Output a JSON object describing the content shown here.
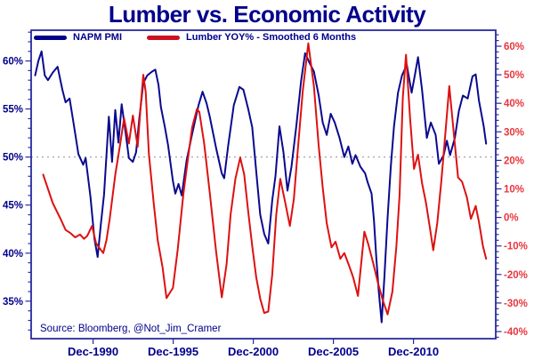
{
  "title": "Lumber vs. Economic Activity",
  "source_note": "Source: Bloomberg, @Not_Jim_Cramer",
  "legend": [
    {
      "label": "NAPM PMI",
      "color": "#00008b"
    },
    {
      "label": "Lumber YOY% - Smoothed 6 Months",
      "color": "#cc1122"
    }
  ],
  "colors": {
    "navy_text": "#00008b",
    "red_label": "#e8353c",
    "frame": "#2a2aa0",
    "reference_line": "#9a9a9a",
    "background": "#ffffff"
  },
  "chart_data": {
    "type": "line",
    "title": "Lumber vs. Economic Activity",
    "grid": "off",
    "legend_position": "top-left-inside",
    "x_axis": {
      "tick_labels": [
        "Dec-1990",
        "Dec-1995",
        "Dec-2000",
        "Dec-2005",
        "Dec-2010"
      ],
      "tick_positions": [
        1990.9167,
        1995.9167,
        2000.9167,
        2005.9167,
        2010.9167
      ],
      "range": [
        1987.05,
        2016.05
      ]
    },
    "left_axis": {
      "series": "NAPM PMI",
      "tick_labels": [
        "35%",
        "40%",
        "45%",
        "50%",
        "55%",
        "60%"
      ],
      "tick_values": [
        35,
        40,
        45,
        50,
        55,
        60
      ],
      "minor_step": 1,
      "range": [
        31.1,
        63.2
      ],
      "color": "#00008b"
    },
    "right_axis": {
      "series": "Lumber YOY% - Smoothed 6 Months",
      "tick_labels": [
        "-40%",
        "-30%",
        "-20%",
        "-10%",
        "0%",
        "10%",
        "20%",
        "30%",
        "40%",
        "50%",
        "60%"
      ],
      "tick_values": [
        -40,
        -30,
        -20,
        -10,
        0,
        10,
        20,
        30,
        40,
        50,
        60
      ],
      "minor_step": 2,
      "range": [
        -42.5,
        65.6
      ],
      "color": "#e8353c"
    },
    "reference_line": {
      "axis": "left",
      "value": 50,
      "style": "dotted",
      "color": "#9a9a9a"
    },
    "series": [
      {
        "name": "NAPM PMI",
        "axis": "left",
        "color": "#0a0a8f",
        "points": [
          [
            1987.3,
            58.5
          ],
          [
            1987.5,
            60.0
          ],
          [
            1987.7,
            61.0
          ],
          [
            1987.9,
            58.5
          ],
          [
            1988.1,
            58.0
          ],
          [
            1988.4,
            58.8
          ],
          [
            1988.7,
            59.4
          ],
          [
            1989.0,
            57.0
          ],
          [
            1989.2,
            55.7
          ],
          [
            1989.45,
            56.1
          ],
          [
            1989.7,
            53.5
          ],
          [
            1990.0,
            50.3
          ],
          [
            1990.3,
            49.2
          ],
          [
            1990.45,
            49.9
          ],
          [
            1990.75,
            45.9
          ],
          [
            1991.0,
            41.5
          ],
          [
            1991.2,
            39.6
          ],
          [
            1991.4,
            43.0
          ],
          [
            1991.6,
            46.1
          ],
          [
            1991.9,
            54.2
          ],
          [
            1992.1,
            49.5
          ],
          [
            1992.3,
            54.9
          ],
          [
            1992.5,
            51.5
          ],
          [
            1992.7,
            55.5
          ],
          [
            1992.95,
            52.5
          ],
          [
            1993.15,
            49.9
          ],
          [
            1993.4,
            49.5
          ],
          [
            1993.6,
            50.5
          ],
          [
            1993.8,
            54.0
          ],
          [
            1994.05,
            57.7
          ],
          [
            1994.3,
            58.5
          ],
          [
            1994.6,
            58.9
          ],
          [
            1994.8,
            59.1
          ],
          [
            1995.0,
            57.5
          ],
          [
            1995.15,
            55.2
          ],
          [
            1995.4,
            53.1
          ],
          [
            1995.6,
            51.2
          ],
          [
            1995.9,
            47.5
          ],
          [
            1996.05,
            46.2
          ],
          [
            1996.25,
            47.2
          ],
          [
            1996.45,
            46.0
          ],
          [
            1996.75,
            49.6
          ],
          [
            1997.1,
            52.4
          ],
          [
            1997.5,
            55.4
          ],
          [
            1997.75,
            56.8
          ],
          [
            1998.0,
            55.6
          ],
          [
            1998.2,
            54.2
          ],
          [
            1998.6,
            50.9
          ],
          [
            1998.95,
            48.3
          ],
          [
            1999.1,
            47.8
          ],
          [
            1999.35,
            51.2
          ],
          [
            1999.7,
            55.4
          ],
          [
            2000.05,
            57.3
          ],
          [
            2000.3,
            57.0
          ],
          [
            2000.6,
            55.0
          ],
          [
            2000.85,
            53.1
          ],
          [
            2001.1,
            48.5
          ],
          [
            2001.35,
            44.0
          ],
          [
            2001.6,
            42.0
          ],
          [
            2001.85,
            41.0
          ],
          [
            2002.1,
            45.5
          ],
          [
            2002.3,
            48.0
          ],
          [
            2002.55,
            53.2
          ],
          [
            2002.8,
            50.5
          ],
          [
            2003.05,
            46.5
          ],
          [
            2003.3,
            49.0
          ],
          [
            2003.6,
            53.2
          ],
          [
            2003.9,
            57.9
          ],
          [
            2004.15,
            60.8
          ],
          [
            2004.4,
            59.9
          ],
          [
            2004.7,
            58.9
          ],
          [
            2005.0,
            56.4
          ],
          [
            2005.25,
            53.6
          ],
          [
            2005.5,
            52.3
          ],
          [
            2005.75,
            54.5
          ],
          [
            2006.0,
            53.6
          ],
          [
            2006.3,
            52.0
          ],
          [
            2006.6,
            50.0
          ],
          [
            2006.85,
            51.1
          ],
          [
            2007.1,
            49.3
          ],
          [
            2007.3,
            50.2
          ],
          [
            2007.6,
            49.0
          ],
          [
            2007.9,
            48.3
          ],
          [
            2008.05,
            47.4
          ],
          [
            2008.3,
            46.2
          ],
          [
            2008.45,
            43.4
          ],
          [
            2008.6,
            39.4
          ],
          [
            2008.75,
            36.0
          ],
          [
            2008.93,
            32.8
          ],
          [
            2009.1,
            37.5
          ],
          [
            2009.3,
            43.7
          ],
          [
            2009.5,
            49.0
          ],
          [
            2009.7,
            53.2
          ],
          [
            2009.95,
            56.7
          ],
          [
            2010.2,
            58.5
          ],
          [
            2010.5,
            59.6
          ],
          [
            2010.8,
            56.7
          ],
          [
            2011.0,
            58.5
          ],
          [
            2011.2,
            60.4
          ],
          [
            2011.45,
            57.0
          ],
          [
            2011.75,
            52.0
          ],
          [
            2012.0,
            53.6
          ],
          [
            2012.3,
            52.3
          ],
          [
            2012.5,
            49.3
          ],
          [
            2012.8,
            50.2
          ],
          [
            2013.0,
            51.7
          ],
          [
            2013.2,
            50.2
          ],
          [
            2013.5,
            52.0
          ],
          [
            2013.75,
            54.8
          ],
          [
            2014.0,
            56.4
          ],
          [
            2014.3,
            56.1
          ],
          [
            2014.6,
            58.4
          ],
          [
            2014.8,
            58.6
          ],
          [
            2015.0,
            55.9
          ],
          [
            2015.3,
            53.2
          ],
          [
            2015.45,
            51.4
          ]
        ]
      },
      {
        "name": "Lumber YOY% - Smoothed 6 Months",
        "axis": "right",
        "color": "#dd1111",
        "points": [
          [
            1987.8,
            15
          ],
          [
            1988.1,
            10
          ],
          [
            1988.4,
            5
          ],
          [
            1988.9,
            -0.7
          ],
          [
            1989.2,
            -4.4
          ],
          [
            1989.5,
            -5.5
          ],
          [
            1989.8,
            -7
          ],
          [
            1990.1,
            -6
          ],
          [
            1990.35,
            -7.5
          ],
          [
            1990.55,
            -6.5
          ],
          [
            1990.85,
            -3
          ],
          [
            1991.1,
            -9
          ],
          [
            1991.35,
            -11
          ],
          [
            1991.55,
            -12.5
          ],
          [
            1991.75,
            -8
          ],
          [
            1991.95,
            -0.7
          ],
          [
            1992.3,
            14.9
          ],
          [
            1992.6,
            25.4
          ],
          [
            1992.85,
            34.7
          ],
          [
            1993.15,
            25.9
          ],
          [
            1993.4,
            35.7
          ],
          [
            1993.7,
            24.8
          ],
          [
            1993.9,
            40
          ],
          [
            1994.05,
            50
          ],
          [
            1994.2,
            44
          ],
          [
            1994.4,
            22.2
          ],
          [
            1994.7,
            5
          ],
          [
            1994.95,
            -8
          ],
          [
            1995.25,
            -17.4
          ],
          [
            1995.5,
            -28.3
          ],
          [
            1995.9,
            -24.7
          ],
          [
            1996.2,
            -11.2
          ],
          [
            1996.55,
            8.1
          ],
          [
            1996.85,
            21.1
          ],
          [
            1997.1,
            31.6
          ],
          [
            1997.4,
            38
          ],
          [
            1997.55,
            36.9
          ],
          [
            1997.85,
            25.9
          ],
          [
            1998.2,
            8.6
          ],
          [
            1998.6,
            -12.2
          ],
          [
            1998.95,
            -28
          ],
          [
            1999.25,
            -16.4
          ],
          [
            1999.5,
            1
          ],
          [
            1999.8,
            13.5
          ],
          [
            2000.1,
            21
          ],
          [
            2000.35,
            15
          ],
          [
            2000.6,
            2
          ],
          [
            2000.85,
            -10
          ],
          [
            2001.1,
            -21
          ],
          [
            2001.35,
            -28.5
          ],
          [
            2001.6,
            -33.5
          ],
          [
            2001.85,
            -33
          ],
          [
            2002.1,
            -20
          ],
          [
            2002.35,
            1
          ],
          [
            2002.6,
            13.5
          ],
          [
            2002.9,
            5.5
          ],
          [
            2003.2,
            -3
          ],
          [
            2003.45,
            6.5
          ],
          [
            2003.7,
            24
          ],
          [
            2004.0,
            44
          ],
          [
            2004.35,
            61
          ],
          [
            2004.7,
            46
          ],
          [
            2005.0,
            25
          ],
          [
            2005.25,
            10.5
          ],
          [
            2005.5,
            -2
          ],
          [
            2005.8,
            -10.5
          ],
          [
            2006.05,
            -8.5
          ],
          [
            2006.35,
            -14.5
          ],
          [
            2006.6,
            -12.5
          ],
          [
            2006.9,
            -17
          ],
          [
            2007.15,
            -21
          ],
          [
            2007.45,
            -27.5
          ],
          [
            2007.85,
            -5
          ],
          [
            2008.1,
            -9.5
          ],
          [
            2008.4,
            -16
          ],
          [
            2008.7,
            -23
          ],
          [
            2009.0,
            -29
          ],
          [
            2009.3,
            -34
          ],
          [
            2009.6,
            -26
          ],
          [
            2009.85,
            -10
          ],
          [
            2010.05,
            8
          ],
          [
            2010.25,
            42
          ],
          [
            2010.45,
            57
          ],
          [
            2010.7,
            35
          ],
          [
            2010.95,
            17
          ],
          [
            2011.2,
            22
          ],
          [
            2011.45,
            12
          ],
          [
            2011.7,
            5
          ],
          [
            2011.95,
            -4
          ],
          [
            2012.15,
            -11.5
          ],
          [
            2012.4,
            -2
          ],
          [
            2012.65,
            12.5
          ],
          [
            2012.9,
            29
          ],
          [
            2013.15,
            46
          ],
          [
            2013.45,
            28.5
          ],
          [
            2013.7,
            14
          ],
          [
            2013.95,
            12.5
          ],
          [
            2014.25,
            7
          ],
          [
            2014.5,
            -0.5
          ],
          [
            2014.8,
            4
          ],
          [
            2015.0,
            -1.5
          ],
          [
            2015.25,
            -10
          ],
          [
            2015.45,
            -14.5
          ]
        ]
      }
    ]
  }
}
